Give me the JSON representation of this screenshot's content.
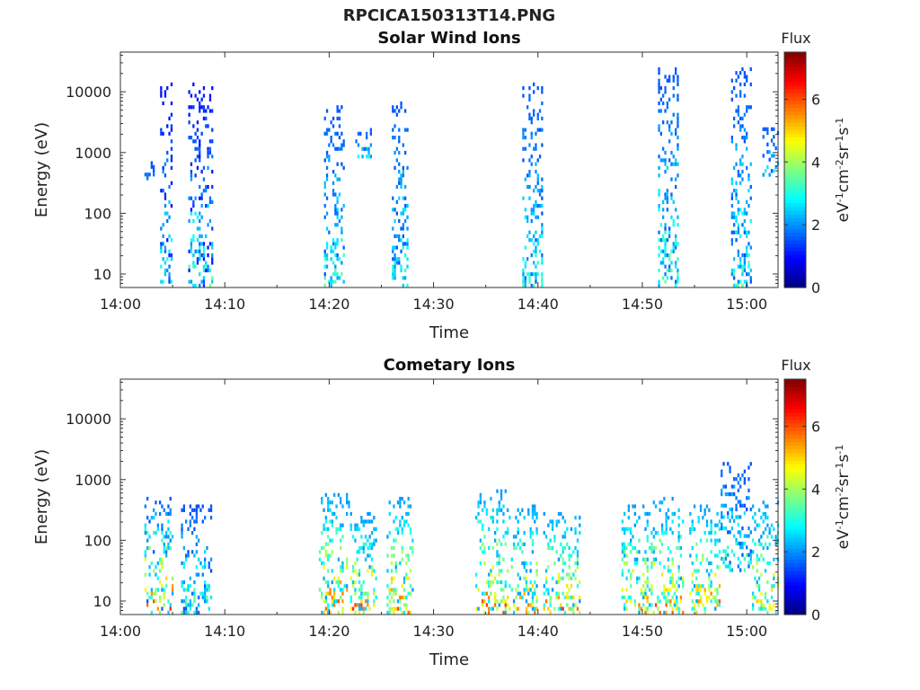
{
  "figure": {
    "title": "RPCICA150313T14.PNG"
  },
  "chart_data": [
    {
      "type": "heatmap",
      "title": "Solar Wind Ions",
      "xlabel": "Time",
      "ylabel": "Energy (eV)",
      "yscale": "log",
      "ylim": [
        6,
        45000
      ],
      "xlim": [
        "14:00",
        "15:03"
      ],
      "x_ticks": [
        "14:00",
        "14:10",
        "14:20",
        "14:30",
        "14:40",
        "14:50",
        "15:00"
      ],
      "y_ticks": [
        "10",
        "100",
        "1000",
        "10000"
      ],
      "grid": false,
      "colorbar": {
        "label": "Flux",
        "unit_label": "eV-1cm-2sr-1s-1",
        "range": [
          0,
          7.5
        ],
        "ticks": [
          "0",
          "2",
          "4",
          "6"
        ],
        "colormap": "jet"
      },
      "cell_groups": [
        {
          "t_start": "14:03.8",
          "t_end": "14:05.0",
          "e_min": 6,
          "e_max": 14000,
          "flux": [
            1.0,
            3.5
          ]
        },
        {
          "t_start": "14:06.5",
          "t_end": "14:08.8",
          "e_min": 6,
          "e_max": 14000,
          "flux": [
            1.0,
            3.8
          ]
        },
        {
          "t_start": "14:02.3",
          "t_end": "14:03.3",
          "e_min": 350,
          "e_max": 700,
          "flux": [
            1.5,
            2.0
          ]
        },
        {
          "t_start": "14:19.5",
          "t_end": "14:21.5",
          "e_min": 6,
          "e_max": 6000,
          "flux": [
            1.5,
            3.8
          ]
        },
        {
          "t_start": "14:22.5",
          "t_end": "14:24.0",
          "e_min": 800,
          "e_max": 2500,
          "flux": [
            1.5,
            3.0
          ]
        },
        {
          "t_start": "14:26.0",
          "t_end": "14:27.6",
          "e_min": 6,
          "e_max": 7000,
          "flux": [
            1.5,
            3.5
          ]
        },
        {
          "t_start": "14:38.5",
          "t_end": "14:40.5",
          "e_min": 6,
          "e_max": 14000,
          "flux": [
            1.5,
            3.5
          ]
        },
        {
          "t_start": "14:51.5",
          "t_end": "14:53.5",
          "e_min": 6,
          "e_max": 25000,
          "flux": [
            1.5,
            3.8
          ]
        },
        {
          "t_start": "14:58.5",
          "t_end": "15:00.5",
          "e_min": 6,
          "e_max": 25000,
          "flux": [
            1.5,
            3.8
          ]
        },
        {
          "t_start": "15:01.5",
          "t_end": "15:03.0",
          "e_min": 400,
          "e_max": 2500,
          "flux": [
            1.5,
            3.2
          ]
        }
      ]
    },
    {
      "type": "heatmap",
      "title": "Cometary Ions",
      "xlabel": "Time",
      "ylabel": "Energy (eV)",
      "yscale": "log",
      "ylim": [
        6,
        45000
      ],
      "xlim": [
        "14:00",
        "15:03"
      ],
      "x_ticks": [
        "14:00",
        "14:10",
        "14:20",
        "14:30",
        "14:40",
        "14:50",
        "15:00"
      ],
      "y_ticks": [
        "10",
        "100",
        "1000",
        "10000"
      ],
      "grid": false,
      "colorbar": {
        "label": "Flux",
        "unit_label": "eV-1cm-2sr-1s-1",
        "range": [
          0,
          7.5
        ],
        "ticks": [
          "0",
          "2",
          "4",
          "6"
        ],
        "colormap": "jet"
      },
      "cell_groups": [
        {
          "t_start": "14:02.3",
          "t_end": "14:05.0",
          "e_min": 6,
          "e_max": 550,
          "flux": [
            1.5,
            7.0
          ]
        },
        {
          "t_start": "14:05.8",
          "t_end": "14:08.8",
          "e_min": 6,
          "e_max": 400,
          "flux": [
            1.5,
            4.0
          ]
        },
        {
          "t_start": "14:19.0",
          "t_end": "14:22.0",
          "e_min": 6,
          "e_max": 600,
          "flux": [
            2.0,
            6.5
          ]
        },
        {
          "t_start": "14:22.0",
          "t_end": "14:24.5",
          "e_min": 6,
          "e_max": 300,
          "flux": [
            2.0,
            6.5
          ]
        },
        {
          "t_start": "14:25.5",
          "t_end": "14:28.0",
          "e_min": 6,
          "e_max": 550,
          "flux": [
            2.0,
            6.5
          ]
        },
        {
          "t_start": "14:34.0",
          "t_end": "14:37.0",
          "e_min": 6,
          "e_max": 700,
          "flux": [
            2.0,
            6.5
          ]
        },
        {
          "t_start": "14:37.0",
          "t_end": "14:40.0",
          "e_min": 6,
          "e_max": 400,
          "flux": [
            2.0,
            6.0
          ]
        },
        {
          "t_start": "14:40.5",
          "t_end": "14:44.0",
          "e_min": 6,
          "e_max": 300,
          "flux": [
            2.0,
            6.5
          ]
        },
        {
          "t_start": "14:48.0",
          "t_end": "14:51.0",
          "e_min": 6,
          "e_max": 400,
          "flux": [
            2.0,
            6.0
          ]
        },
        {
          "t_start": "14:51.0",
          "t_end": "14:54.0",
          "e_min": 6,
          "e_max": 500,
          "flux": [
            2.0,
            6.5
          ]
        },
        {
          "t_start": "14:54.5",
          "t_end": "14:57.5",
          "e_min": 6,
          "e_max": 400,
          "flux": [
            2.0,
            6.5
          ]
        },
        {
          "t_start": "14:57.5",
          "t_end": "15:00.5",
          "e_min": 30,
          "e_max": 2000,
          "flux": [
            1.5,
            4.0
          ]
        },
        {
          "t_start": "15:00.5",
          "t_end": "15:03.0",
          "e_min": 6,
          "e_max": 450,
          "flux": [
            2.0,
            6.0
          ]
        }
      ]
    }
  ]
}
